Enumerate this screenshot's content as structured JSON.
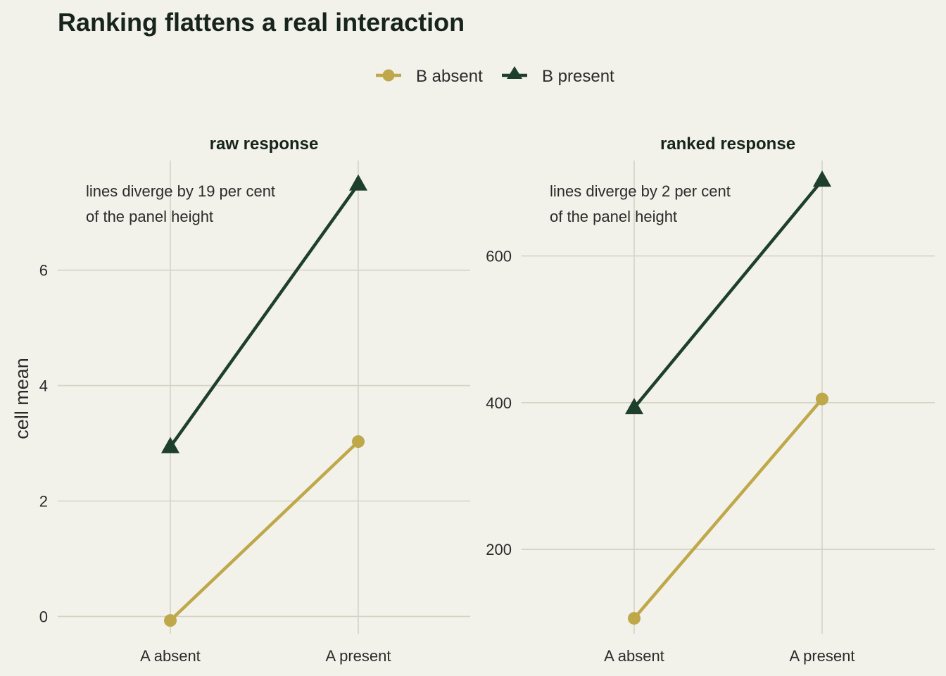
{
  "title": "Ranking flattens a real interaction",
  "colors": {
    "background": "#f2f1ea",
    "b_absent": "#bea84a",
    "b_present": "#1d3f2c",
    "grid": "#d5d3c3"
  },
  "legend": {
    "position": "top",
    "items": [
      "B absent",
      "B present"
    ]
  },
  "ylabel": "cell mean",
  "chart_data": [
    {
      "type": "line",
      "panel_title": "raw response",
      "categories": [
        "A absent",
        "A present"
      ],
      "ylim": [
        -0.3,
        7.9
      ],
      "yticks": [
        0,
        2,
        4,
        6
      ],
      "ytick_labels": [
        "0",
        "2",
        "4",
        "6"
      ],
      "grid": true,
      "annotation": [
        "lines diverge by 19 per cent",
        "of the panel height"
      ],
      "series": [
        {
          "name": "B absent",
          "marker": "circle",
          "values": [
            -0.07,
            3.03
          ]
        },
        {
          "name": "B present",
          "marker": "triangle",
          "values": [
            2.94,
            7.49
          ]
        }
      ]
    },
    {
      "type": "line",
      "panel_title": "ranked response",
      "categories": [
        "A absent",
        "A present"
      ],
      "ylim": [
        85,
        730
      ],
      "yticks": [
        200,
        400,
        600
      ],
      "ytick_labels": [
        "200",
        "400",
        "600"
      ],
      "grid": true,
      "annotation": [
        "lines diverge by 2 per cent",
        "of the panel height"
      ],
      "series": [
        {
          "name": "B absent",
          "marker": "circle",
          "values": [
            106,
            405
          ]
        },
        {
          "name": "B present",
          "marker": "triangle",
          "values": [
            393,
            703
          ]
        }
      ]
    }
  ]
}
